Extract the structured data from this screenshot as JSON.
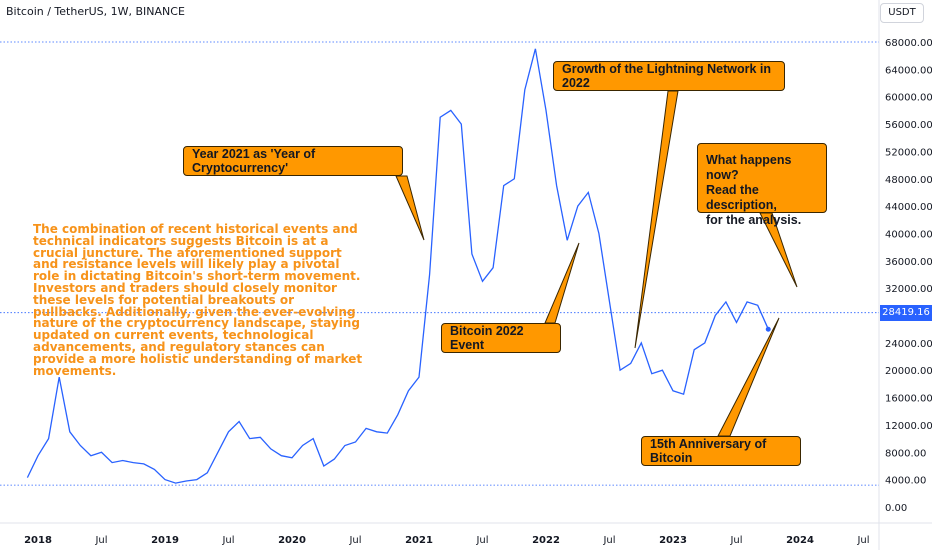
{
  "header": {
    "title": "Bitcoin / TetherUS, 1W, BINANCE"
  },
  "price_scale": {
    "currency": "USDT",
    "last_price": "28419.16",
    "ticks": [
      "68000.00",
      "64000.00",
      "60000.00",
      "56000.00",
      "52000.00",
      "48000.00",
      "44000.00",
      "40000.00",
      "36000.00",
      "32000.00",
      "28000.00",
      "24000.00",
      "20000.00",
      "16000.00",
      "12000.00",
      "8000.00",
      "4000.00",
      "0.00"
    ]
  },
  "time_scale": {
    "labels": [
      "2018",
      "Jul",
      "2019",
      "Jul",
      "2020",
      "Jul",
      "2021",
      "Jul",
      "2022",
      "Jul",
      "2023",
      "Jul",
      "2024",
      "Jul"
    ]
  },
  "callouts": {
    "year_2021": "Year 2021 as 'Year of Cryptocurrency'",
    "lightning": "Growth of the Lightning Network in 2022",
    "now_line1": "What happens now?",
    "now_line2": "Read the description,",
    "now_line3": "for the analysis.",
    "event_2022": "Bitcoin 2022 Event",
    "anniversary": "15th Anniversary of Bitcoin"
  },
  "description": "The combination of recent historical events and technical indicators suggests Bitcoin is at a crucial juncture. The aforementioned support and resistance levels will likely play a pivotal role in dictating Bitcoin's short-term movement. Investors and traders should closely monitor these levels for potential breakouts or pullbacks. Additionally, given the ever-evolving nature of the cryptocurrency landscape, staying updated on current events, technological advancements, and regulatory stances can provide a more holistic understanding of market movements.",
  "colors": {
    "line": "#2962ff",
    "callout": "#ff9800",
    "text_accent": "#f7931a",
    "dotted": "#2962ff"
  },
  "chart_data": {
    "type": "line",
    "title": "Bitcoin / TetherUS, 1W, BINANCE",
    "ylim": [
      0,
      68000
    ],
    "horizontal_levels": [
      68000,
      28419.16,
      3200
    ],
    "series": [
      {
        "name": "BTCUSDT",
        "x": [
          "2017-12",
          "2018-01",
          "2018-02",
          "2018-03",
          "2018-04",
          "2018-05",
          "2018-06",
          "2018-07",
          "2018-08",
          "2018-09",
          "2018-10",
          "2018-11",
          "2018-12",
          "2019-01",
          "2019-02",
          "2019-03",
          "2019-04",
          "2019-05",
          "2019-06",
          "2019-07",
          "2019-08",
          "2019-09",
          "2019-10",
          "2019-11",
          "2019-12",
          "2020-01",
          "2020-02",
          "2020-03",
          "2020-04",
          "2020-05",
          "2020-06",
          "2020-07",
          "2020-08",
          "2020-09",
          "2020-10",
          "2020-11",
          "2020-12",
          "2021-01",
          "2021-02",
          "2021-03",
          "2021-04",
          "2021-05",
          "2021-06",
          "2021-07",
          "2021-08",
          "2021-09",
          "2021-10",
          "2021-11",
          "2021-12",
          "2022-01",
          "2022-02",
          "2022-03",
          "2022-04",
          "2022-05",
          "2022-06",
          "2022-07",
          "2022-08",
          "2022-09",
          "2022-10",
          "2022-11",
          "2022-12",
          "2023-01",
          "2023-02",
          "2023-03",
          "2023-04",
          "2023-05",
          "2023-06",
          "2023-07",
          "2023-08",
          "2023-09",
          "2023-10"
        ],
        "values": [
          4300,
          7500,
          10000,
          19000,
          11000,
          9000,
          7500,
          8000,
          6500,
          6800,
          6500,
          6300,
          5500,
          4000,
          3500,
          3800,
          4000,
          5000,
          8000,
          11000,
          12500,
          10000,
          10200,
          8500,
          7500,
          7200,
          9000,
          10000,
          6000,
          7000,
          9000,
          9500,
          11500,
          11000,
          10800,
          13500,
          17000,
          19000,
          34000,
          57000,
          58000,
          56000,
          37000,
          33000,
          35000,
          47000,
          48000,
          61000,
          67000,
          58000,
          47000,
          39000,
          44000,
          46000,
          40000,
          30000,
          20000,
          21000,
          24000,
          19500,
          20000,
          17000,
          16500,
          23000,
          24000,
          28000,
          30000,
          27000,
          30000,
          29500,
          26000
        ]
      }
    ]
  }
}
